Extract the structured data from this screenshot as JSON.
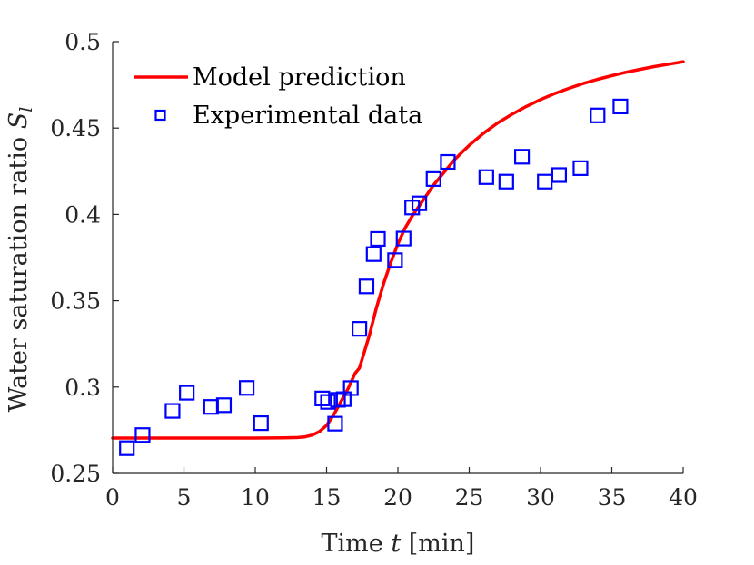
{
  "chart_data": {
    "type": "line",
    "title": "",
    "xlabel": "Time t [min]",
    "xlabel_parts": {
      "pre": "Time ",
      "var": "t",
      "post": " [min]"
    },
    "ylabel": "Water saturation ratio S_l",
    "ylabel_parts": {
      "pre": "Water saturation ratio ",
      "var": "S",
      "sub": "l"
    },
    "xlim": [
      0,
      40
    ],
    "ylim": [
      0.25,
      0.5
    ],
    "xticks": [
      0,
      5,
      10,
      15,
      20,
      25,
      30,
      35,
      40
    ],
    "xtick_labels": [
      "0",
      "5",
      "10",
      "15",
      "20",
      "25",
      "30",
      "35",
      "40"
    ],
    "yticks": [
      0.25,
      0.3,
      0.35,
      0.4,
      0.45,
      0.5
    ],
    "ytick_labels": [
      "0.25",
      "0.3",
      "0.35",
      "0.4",
      "0.45",
      "0.5"
    ],
    "grid": false,
    "legend_position": "top-left",
    "colors": {
      "model": "#ff0000",
      "experimental": "#0000ff",
      "axis": "#262626"
    },
    "series": [
      {
        "name": "Model prediction",
        "type": "line",
        "x": [
          0,
          2,
          4,
          6,
          8,
          10,
          12,
          13,
          13.5,
          14,
          14.5,
          15,
          15.5,
          16,
          16.5,
          17,
          17.3,
          17.6,
          18,
          18.5,
          19,
          19.5,
          20,
          20.5,
          21,
          21.5,
          22,
          22.5,
          23,
          24,
          25,
          26,
          27,
          28,
          29,
          30,
          31,
          32,
          33,
          34,
          35,
          36,
          37,
          38,
          39,
          40
        ],
        "y": [
          0.2705,
          0.2705,
          0.2705,
          0.2705,
          0.2705,
          0.2705,
          0.2706,
          0.2708,
          0.2712,
          0.2722,
          0.2742,
          0.2778,
          0.284,
          0.2915,
          0.299,
          0.308,
          0.311,
          0.319,
          0.33,
          0.346,
          0.36,
          0.372,
          0.383,
          0.392,
          0.399,
          0.405,
          0.411,
          0.417,
          0.422,
          0.432,
          0.44,
          0.447,
          0.453,
          0.458,
          0.4625,
          0.4665,
          0.47,
          0.473,
          0.4758,
          0.4782,
          0.4803,
          0.4823,
          0.484,
          0.4856,
          0.487,
          0.4884
        ]
      },
      {
        "name": "Experimental data",
        "type": "scatter",
        "marker": "square",
        "x": [
          1.0,
          2.1,
          4.2,
          5.2,
          6.9,
          7.8,
          9.4,
          10.4,
          14.7,
          15.1,
          15.6,
          15.8,
          16.2,
          16.7,
          17.3,
          17.8,
          18.3,
          18.6,
          19.8,
          20.4,
          21.0,
          21.5,
          22.5,
          23.5,
          26.2,
          27.6,
          28.7,
          30.3,
          31.3,
          32.8,
          34.0,
          35.6
        ],
        "y": [
          0.2646,
          0.2722,
          0.2862,
          0.2967,
          0.2885,
          0.2895,
          0.2995,
          0.2791,
          0.2934,
          0.2914,
          0.2788,
          0.2926,
          0.293,
          0.2994,
          0.3337,
          0.3583,
          0.377,
          0.3858,
          0.3735,
          0.386,
          0.404,
          0.4064,
          0.4205,
          0.4304,
          0.4216,
          0.419,
          0.4334,
          0.419,
          0.4228,
          0.4268,
          0.4573,
          0.4625
        ]
      }
    ]
  }
}
